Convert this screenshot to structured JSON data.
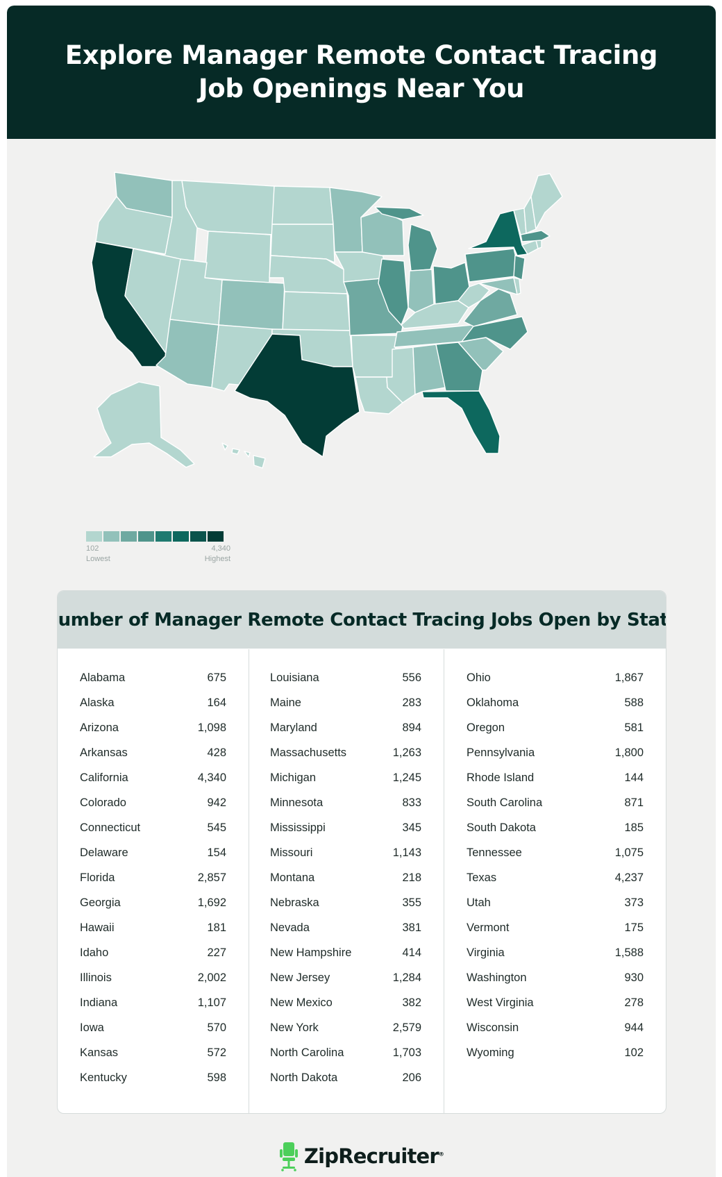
{
  "header": {
    "title": "Explore Manager Remote Contact Tracing Job Openings Near You"
  },
  "map": {
    "color_scale": [
      "#b3d6cf",
      "#92c1ba",
      "#6fa9a1",
      "#4f948b",
      "#1f7a70",
      "#0d685e",
      "#0a544c",
      "#033c36"
    ]
  },
  "legend": {
    "min_value": "102",
    "min_label": "Lowest",
    "max_value": "4,340",
    "max_label": "Highest"
  },
  "table": {
    "title": "Number of Manager Remote Contact Tracing Jobs Open by State",
    "columns": [
      [
        {
          "state": "Alabama",
          "count": "675"
        },
        {
          "state": "Alaska",
          "count": "164"
        },
        {
          "state": "Arizona",
          "count": "1,098"
        },
        {
          "state": "Arkansas",
          "count": "428"
        },
        {
          "state": "California",
          "count": "4,340"
        },
        {
          "state": "Colorado",
          "count": "942"
        },
        {
          "state": "Connecticut",
          "count": "545"
        },
        {
          "state": "Delaware",
          "count": "154"
        },
        {
          "state": "Florida",
          "count": "2,857"
        },
        {
          "state": "Georgia",
          "count": "1,692"
        },
        {
          "state": "Hawaii",
          "count": "181"
        },
        {
          "state": "Idaho",
          "count": "227"
        },
        {
          "state": "Illinois",
          "count": "2,002"
        },
        {
          "state": "Indiana",
          "count": "1,107"
        },
        {
          "state": "Iowa",
          "count": "570"
        },
        {
          "state": "Kansas",
          "count": "572"
        },
        {
          "state": "Kentucky",
          "count": "598"
        }
      ],
      [
        {
          "state": "Louisiana",
          "count": "556"
        },
        {
          "state": "Maine",
          "count": "283"
        },
        {
          "state": "Maryland",
          "count": "894"
        },
        {
          "state": "Massachusetts",
          "count": "1,263"
        },
        {
          "state": "Michigan",
          "count": "1,245"
        },
        {
          "state": "Minnesota",
          "count": "833"
        },
        {
          "state": "Mississippi",
          "count": "345"
        },
        {
          "state": "Missouri",
          "count": "1,143"
        },
        {
          "state": "Montana",
          "count": "218"
        },
        {
          "state": "Nebraska",
          "count": "355"
        },
        {
          "state": "Nevada",
          "count": "381"
        },
        {
          "state": "New Hampshire",
          "count": "414"
        },
        {
          "state": "New Jersey",
          "count": "1,284"
        },
        {
          "state": "New Mexico",
          "count": "382"
        },
        {
          "state": "New York",
          "count": "2,579"
        },
        {
          "state": "North Carolina",
          "count": "1,703"
        },
        {
          "state": "North Dakota",
          "count": "206"
        }
      ],
      [
        {
          "state": "Ohio",
          "count": "1,867"
        },
        {
          "state": "Oklahoma",
          "count": "588"
        },
        {
          "state": "Oregon",
          "count": "581"
        },
        {
          "state": "Pennsylvania",
          "count": "1,800"
        },
        {
          "state": "Rhode Island",
          "count": "144"
        },
        {
          "state": "South Carolina",
          "count": "871"
        },
        {
          "state": "South Dakota",
          "count": "185"
        },
        {
          "state": "Tennessee",
          "count": "1,075"
        },
        {
          "state": "Texas",
          "count": "4,237"
        },
        {
          "state": "Utah",
          "count": "373"
        },
        {
          "state": "Vermont",
          "count": "175"
        },
        {
          "state": "Virginia",
          "count": "1,588"
        },
        {
          "state": "Washington",
          "count": "930"
        },
        {
          "state": "West Virginia",
          "count": "278"
        },
        {
          "state": "Wisconsin",
          "count": "944"
        },
        {
          "state": "Wyoming",
          "count": "102"
        }
      ]
    ]
  },
  "footer": {
    "brand": "ZipRecruiter",
    "mark": "®"
  }
}
